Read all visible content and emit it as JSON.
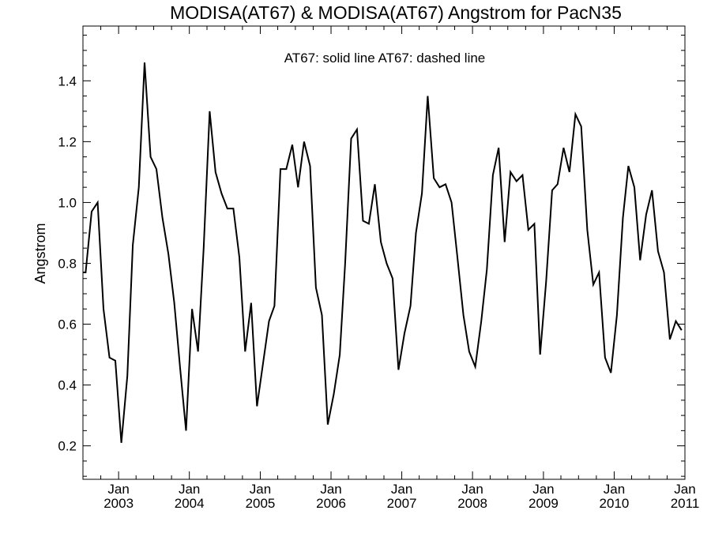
{
  "chart_data": {
    "type": "line",
    "title": "MODISA(AT67) & MODISA(AT67)  Angstrom for PacN35",
    "annotation": "AT67: solid line   AT67: dashed line",
    "ylabel": "Angstrom",
    "xlabel": "",
    "xlim": [
      "2002-07-01",
      "2011-01-01"
    ],
    "ylim": [
      0.09,
      1.58
    ],
    "yticks": [
      0.2,
      0.4,
      0.6,
      0.8,
      1.0,
      1.2,
      1.4
    ],
    "ytick_labels": [
      "0.2",
      "0.4",
      "0.6",
      "0.8",
      "1.0",
      "1.2",
      "1.4"
    ],
    "xticks": [
      "2003-01-01",
      "2004-01-01",
      "2005-01-01",
      "2006-01-01",
      "2007-01-01",
      "2008-01-01",
      "2009-01-01",
      "2010-01-01",
      "2011-01-01"
    ],
    "xtick_month_label": "Jan",
    "xtick_year_labels": [
      "2003",
      "2004",
      "2005",
      "2006",
      "2007",
      "2008",
      "2009",
      "2010",
      "2011"
    ],
    "series": [
      {
        "style": "solid",
        "color": "#000000",
        "x": [
          "2002-07-15",
          "2002-08-15",
          "2002-09-15",
          "2002-10-15",
          "2002-11-15",
          "2002-12-15",
          "2003-01-15",
          "2003-02-15",
          "2003-03-15",
          "2003-04-15",
          "2003-05-15",
          "2003-06-15",
          "2003-07-15",
          "2003-08-15",
          "2003-09-15",
          "2003-10-15",
          "2003-11-15",
          "2003-12-15",
          "2004-01-15",
          "2004-02-15",
          "2004-03-15",
          "2004-04-15",
          "2004-05-15",
          "2004-06-15",
          "2004-07-15",
          "2004-08-15",
          "2004-09-15",
          "2004-10-15",
          "2004-11-15",
          "2004-12-15",
          "2005-01-15",
          "2005-02-15",
          "2005-03-15",
          "2005-04-15",
          "2005-05-15",
          "2005-06-15",
          "2005-07-15",
          "2005-08-15",
          "2005-09-15",
          "2005-10-15",
          "2005-11-15",
          "2005-12-15",
          "2006-01-15",
          "2006-02-15",
          "2006-03-15",
          "2006-04-15",
          "2006-05-15",
          "2006-06-15",
          "2006-07-15",
          "2006-08-15",
          "2006-09-15",
          "2006-10-15",
          "2006-11-15",
          "2006-12-15",
          "2007-01-15",
          "2007-02-15",
          "2007-03-15",
          "2007-04-15",
          "2007-05-15",
          "2007-06-15",
          "2007-07-15",
          "2007-08-15",
          "2007-09-15",
          "2007-10-15",
          "2007-11-15",
          "2007-12-15",
          "2008-01-15",
          "2008-02-15",
          "2008-03-15",
          "2008-04-15",
          "2008-05-15",
          "2008-06-15",
          "2008-07-15",
          "2008-08-15",
          "2008-09-15",
          "2008-10-15",
          "2008-11-15",
          "2008-12-15",
          "2009-01-15",
          "2009-02-15",
          "2009-03-15",
          "2009-04-15",
          "2009-05-15",
          "2009-06-15",
          "2009-07-15",
          "2009-08-15",
          "2009-09-15",
          "2009-10-15",
          "2009-11-15",
          "2009-12-15",
          "2010-01-15",
          "2010-02-15",
          "2010-03-15",
          "2010-04-15",
          "2010-05-15",
          "2010-06-15",
          "2010-07-15",
          "2010-08-15",
          "2010-09-15",
          "2010-10-15",
          "2010-11-15",
          "2010-12-15"
        ],
        "values": [
          0.77,
          0.97,
          1.0,
          0.65,
          0.49,
          0.48,
          0.21,
          0.43,
          0.86,
          1.05,
          1.46,
          1.15,
          1.11,
          0.95,
          0.83,
          0.67,
          0.45,
          0.25,
          0.65,
          0.51,
          0.85,
          1.3,
          1.1,
          1.03,
          0.98,
          0.98,
          0.82,
          0.51,
          0.67,
          0.33,
          0.47,
          0.61,
          0.66,
          1.11,
          1.11,
          1.19,
          1.05,
          1.2,
          1.12,
          0.72,
          0.63,
          0.27,
          0.37,
          0.5,
          0.8,
          1.21,
          1.24,
          0.94,
          0.93,
          1.06,
          0.87,
          0.8,
          0.75,
          0.45,
          0.57,
          0.66,
          0.9,
          1.03,
          1.35,
          1.08,
          1.05,
          1.06,
          1.0,
          0.82,
          0.63,
          0.51,
          0.46,
          0.61,
          0.78,
          1.09,
          1.18,
          0.87,
          1.1,
          1.07,
          1.09,
          0.91,
          0.93,
          0.5,
          0.74,
          1.04,
          1.06,
          1.18,
          1.1,
          1.29,
          1.25,
          0.91,
          0.73,
          0.77,
          0.49,
          0.44,
          0.63,
          0.95,
          1.12,
          1.05,
          0.81,
          0.96,
          1.04,
          0.84,
          0.77,
          0.55,
          0.61,
          0.58
        ]
      }
    ]
  }
}
